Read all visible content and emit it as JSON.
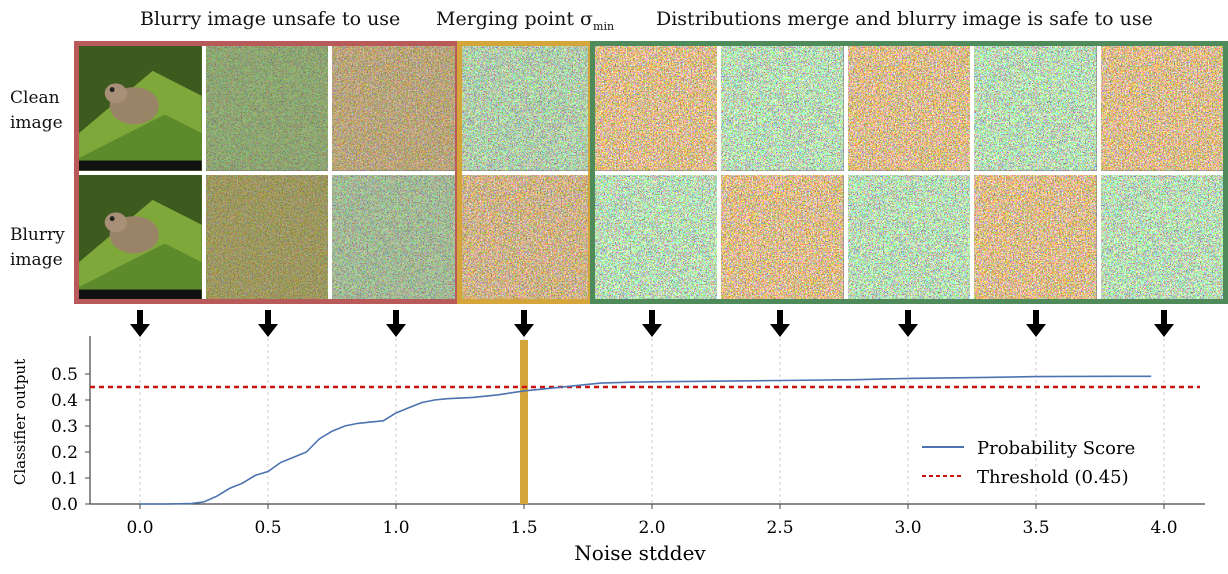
{
  "headers": {
    "unsafe": "Blurry image unsafe to use",
    "merging_prefix": "Merging point σ",
    "merging_sub": "min",
    "safe": "Distributions merge and blurry image is safe to use"
  },
  "row_labels": {
    "clean_line1": "Clean",
    "clean_line2": "image",
    "blurry_line1": "Blurry",
    "blurry_line2": "image"
  },
  "colors": {
    "unsafe_border": "#b85a5a",
    "merge_border": "#d4a53a",
    "safe_border": "#4e8a5a",
    "line": "#4c72b0",
    "threshold": "#cc1111",
    "merge_bar": "#d4a53a"
  },
  "chart_data": {
    "type": "line",
    "xlabel": "Noise stddev",
    "ylabel": "Classifier output",
    "xlim": [
      -0.2,
      4.15
    ],
    "ylim": [
      0.0,
      0.52
    ],
    "xticks": [
      "0.0",
      "0.5",
      "1.0",
      "1.5",
      "2.0",
      "2.5",
      "3.0",
      "3.5",
      "4.0"
    ],
    "yticks": [
      "0.0",
      "0.1",
      "0.2",
      "0.3",
      "0.4",
      "0.5"
    ],
    "grid": "vertical-dashed",
    "legend_position": "bottom-right",
    "series": [
      {
        "name": "Probability Score",
        "style": "solid",
        "x": [
          0.0,
          0.1,
          0.2,
          0.25,
          0.3,
          0.35,
          0.4,
          0.45,
          0.5,
          0.55,
          0.6,
          0.65,
          0.7,
          0.75,
          0.8,
          0.85,
          0.9,
          0.95,
          1.0,
          1.05,
          1.1,
          1.15,
          1.2,
          1.3,
          1.4,
          1.5,
          1.6,
          1.7,
          1.8,
          1.9,
          2.0,
          2.2,
          2.5,
          2.8,
          3.0,
          3.3,
          3.5,
          3.8,
          3.95
        ],
        "y": [
          0.0,
          0.0,
          0.002,
          0.008,
          0.03,
          0.06,
          0.08,
          0.11,
          0.125,
          0.16,
          0.18,
          0.2,
          0.25,
          0.28,
          0.3,
          0.31,
          0.315,
          0.32,
          0.35,
          0.37,
          0.39,
          0.4,
          0.405,
          0.41,
          0.42,
          0.435,
          0.445,
          0.455,
          0.465,
          0.468,
          0.47,
          0.472,
          0.475,
          0.478,
          0.483,
          0.487,
          0.49,
          0.491,
          0.491
        ]
      }
    ],
    "threshold": {
      "name": "Threshold (0.45)",
      "value": 0.45,
      "style": "dashed"
    },
    "marker_vline": {
      "x": 1.5
    }
  }
}
